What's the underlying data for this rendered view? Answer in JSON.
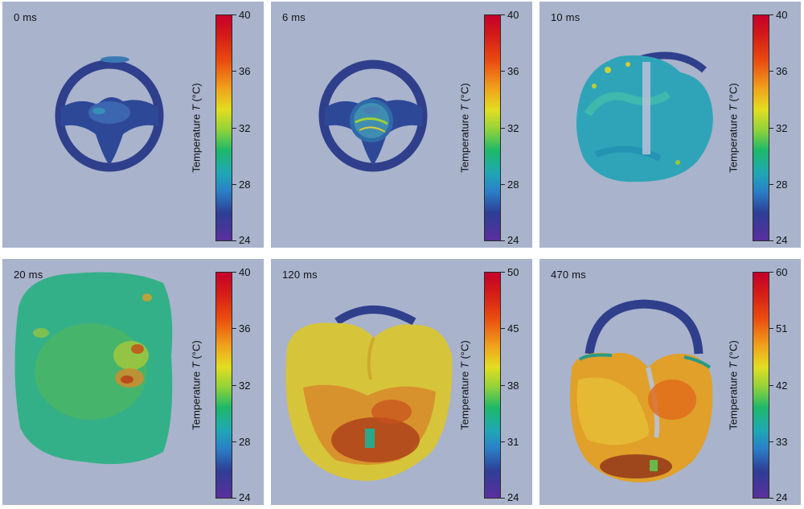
{
  "axis_title": {
    "prefix": "Temperature ",
    "symbol": "T",
    "unit": " (°C)"
  },
  "panels": [
    {
      "time": "0 ms",
      "ticks": [
        "40",
        "36",
        "32",
        "28",
        "24"
      ]
    },
    {
      "time": "6 ms",
      "ticks": [
        "40",
        "36",
        "32",
        "28",
        "24"
      ]
    },
    {
      "time": "10 ms",
      "ticks": [
        "40",
        "36",
        "32",
        "28",
        "24"
      ]
    },
    {
      "time": "20 ms",
      "ticks": [
        "40",
        "36",
        "32",
        "28",
        "24"
      ]
    },
    {
      "time": "120 ms",
      "ticks": [
        "50",
        "45",
        "38",
        "31",
        "24"
      ]
    },
    {
      "time": "470 ms",
      "ticks": [
        "60",
        "51",
        "42",
        "33",
        "24"
      ]
    }
  ]
}
